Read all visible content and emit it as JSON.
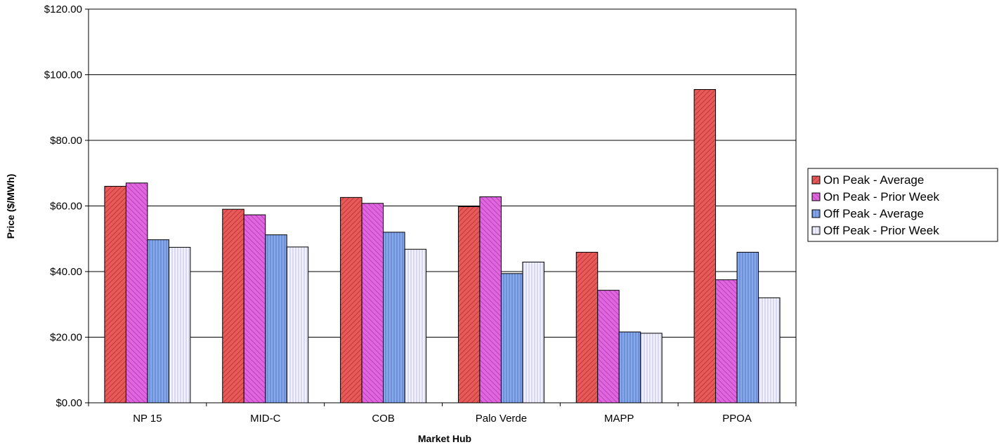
{
  "chart_data": {
    "type": "bar",
    "title": "",
    "xlabel": "Market Hub",
    "ylabel": "Price ($/MWh)",
    "ylim": [
      0,
      120
    ],
    "yticks": [
      "$0.00",
      "$20.00",
      "$40.00",
      "$60.00",
      "$80.00",
      "$100.00",
      "$120.00"
    ],
    "ytick_values": [
      0,
      20,
      40,
      60,
      80,
      100,
      120
    ],
    "grid": true,
    "legend_position": "right",
    "categories": [
      "NP 15",
      "MID-C",
      "COB",
      "Palo Verde",
      "MAPP",
      "PPOA"
    ],
    "series": [
      {
        "name": "On Peak - Average",
        "color": "#e85a5a",
        "pattern": "diag-dense",
        "values": [
          66.0,
          59.0,
          62.6,
          59.8,
          45.9,
          95.5
        ]
      },
      {
        "name": "On Peak - Prior Week",
        "color": "#dd55dd",
        "pattern": "diag",
        "values": [
          67.0,
          57.3,
          60.8,
          62.8,
          34.3,
          37.5
        ]
      },
      {
        "name": "Off Peak - Average",
        "color": "#7a9ee6",
        "pattern": "vert",
        "values": [
          49.7,
          51.2,
          52.0,
          39.4,
          21.6,
          45.9
        ]
      },
      {
        "name": "Off Peak - Prior Week",
        "color": "#ececfb",
        "pattern": "vert-light",
        "values": [
          47.4,
          47.5,
          46.8,
          42.9,
          21.2,
          32.0
        ]
      }
    ]
  }
}
